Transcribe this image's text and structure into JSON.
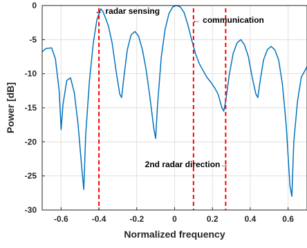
{
  "chart_data": {
    "type": "line",
    "title": "",
    "xlabel": "Normalized frequency",
    "ylabel": "Power [dB]",
    "xlim": [
      -0.7,
      0.7
    ],
    "ylim": [
      -30,
      0
    ],
    "x_ticks": [
      -0.6,
      -0.4,
      -0.2,
      0,
      0.2,
      0.4,
      0.6
    ],
    "x_tick_labels": [
      "-0.6",
      "-0.4",
      "-0.2",
      "0",
      "0.2",
      "0.4",
      "0.6"
    ],
    "y_ticks": [
      0,
      -5,
      -10,
      -15,
      -20,
      -25,
      -30
    ],
    "y_tick_labels": [
      "0",
      "-5",
      "-10",
      "-15",
      "-20",
      "-25",
      "-30"
    ],
    "grid": true,
    "colors": {
      "line": "#0072BD",
      "markers": "#FF0000",
      "grid": "#DFDFDF",
      "axis": "#262626"
    },
    "series": [
      {
        "x": [
          -0.7,
          -0.68,
          -0.65,
          -0.63,
          -0.61,
          -0.6,
          -0.59,
          -0.57,
          -0.55,
          -0.53,
          -0.51,
          -0.49,
          -0.48,
          -0.47,
          -0.45,
          -0.43,
          -0.41,
          -0.39,
          -0.38,
          -0.37,
          -0.35,
          -0.33,
          -0.31,
          -0.29,
          -0.28,
          -0.27,
          -0.25,
          -0.23,
          -0.21,
          -0.19,
          -0.17,
          -0.15,
          -0.13,
          -0.11,
          -0.1,
          -0.09,
          -0.07,
          -0.05,
          -0.03,
          -0.01,
          0.01,
          0.03,
          0.05,
          0.07,
          0.09,
          0.11,
          0.13,
          0.15,
          0.17,
          0.19,
          0.21,
          0.23,
          0.25,
          0.26,
          0.27,
          0.29,
          0.31,
          0.33,
          0.35,
          0.37,
          0.39,
          0.41,
          0.43,
          0.44,
          0.45,
          0.47,
          0.49,
          0.51,
          0.53,
          0.55,
          0.57,
          0.59,
          0.61,
          0.62,
          0.63,
          0.65,
          0.67,
          0.7
        ],
        "y": [
          -6.8,
          -6.3,
          -6.2,
          -7.8,
          -12.5,
          -18.2,
          -14.5,
          -11.0,
          -10.6,
          -12.8,
          -17.5,
          -24.0,
          -27.0,
          -19.0,
          -11.0,
          -5.5,
          -2.0,
          -0.5,
          -0.8,
          -1.5,
          -3.0,
          -5.5,
          -9.5,
          -13.0,
          -13.5,
          -11.0,
          -6.5,
          -4.3,
          -3.8,
          -4.5,
          -6.5,
          -9.5,
          -13.5,
          -18.0,
          -19.5,
          -14.5,
          -7.5,
          -3.5,
          -1.2,
          -0.2,
          0.0,
          -0.2,
          -1.0,
          -2.8,
          -5.0,
          -7.0,
          -8.5,
          -9.5,
          -10.5,
          -11.2,
          -12.0,
          -13.0,
          -15.0,
          -15.5,
          -14.0,
          -10.0,
          -7.0,
          -5.5,
          -5.0,
          -5.8,
          -7.5,
          -10.5,
          -13.0,
          -13.5,
          -11.5,
          -8.0,
          -6.5,
          -6.0,
          -6.5,
          -8.0,
          -11.5,
          -17.5,
          -26.5,
          -28.0,
          -20.0,
          -14.0,
          -10.5,
          -9.0
        ]
      }
    ],
    "markers": [
      {
        "x": -0.4,
        "label": "radar sensing",
        "arrow": "←"
      },
      {
        "x": 0.1,
        "label": "communication",
        "arrow": "←"
      },
      {
        "x": 0.27,
        "label": "2nd radar direction",
        "arrow": "→"
      }
    ]
  }
}
